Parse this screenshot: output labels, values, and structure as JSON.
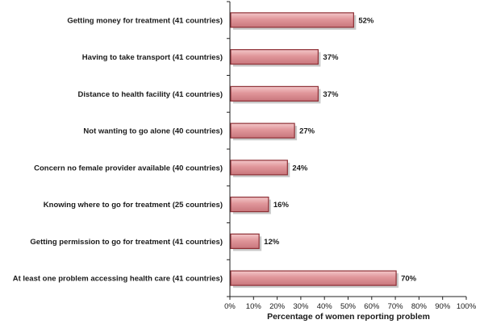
{
  "chart_data": {
    "type": "bar",
    "orientation": "horizontal",
    "categories": [
      "Getting money for treatment  (41 countries)",
      "Having to take transport  (41 countries)",
      "Distance to health facility  (41 countries)",
      "Not wanting to go alone  (40 countries)",
      "Concern no female provider available  (40 countries)",
      "Knowing where to go for treatment (25 countries)",
      "Getting permission to go for treatment  (41 countries)",
      "At least one problem accessing health care  (41 countries)"
    ],
    "values": [
      52,
      37,
      37,
      27,
      24,
      16,
      12,
      70
    ],
    "value_labels": [
      "52%",
      "37%",
      "37%",
      "27%",
      "24%",
      "16%",
      "12%",
      "70%"
    ],
    "xlabel": "Percentage of women reporting problem",
    "ylabel": "",
    "xlim": [
      0,
      100
    ],
    "x_ticks": [
      "0%",
      "10%",
      "20%",
      "30%",
      "40%",
      "50%",
      "60%",
      "70%",
      "80%",
      "90%",
      "100%"
    ],
    "grid": false,
    "legend": "none",
    "colors": {
      "bar_fill": "#e0969a",
      "bar_light": "#f3c7c9",
      "bar_edge": "#8e2f35",
      "bar_shadow": "#9c9c9c",
      "axis": "#222222"
    }
  }
}
